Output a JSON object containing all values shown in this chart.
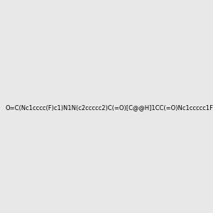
{
  "smiles": "O=C(Nc1cccc(F)c1)N1N(c2ccccc2)C(=O)[C@@H]1CC(=O)Nc1ccccc1F",
  "title": "",
  "background_color": "#e8e8e8",
  "img_size": [
    300,
    300
  ],
  "atom_colors": {
    "N": "#0000FF",
    "O": "#FF0000",
    "F": "#00AAAA",
    "S": "#CCCC00",
    "C": "#000000",
    "H": "#888888"
  }
}
